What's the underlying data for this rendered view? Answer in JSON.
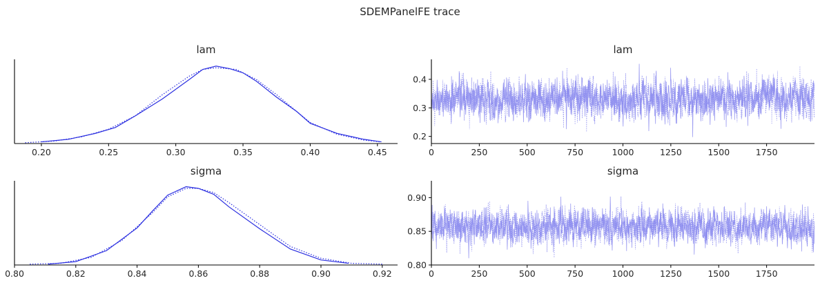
{
  "figure": {
    "suptitle": "SDEMPanelFE trace",
    "line_color": "#2a2ee0",
    "trace_color": "#8a8aee"
  },
  "chart_data": [
    {
      "id": "lam-kde",
      "type": "line",
      "title": "lam",
      "xlabel": "",
      "ylabel": "",
      "xlim": [
        0.18,
        0.465
      ],
      "ylim": [
        0,
        1.0
      ],
      "x_ticks": [
        0.2,
        0.25,
        0.3,
        0.35,
        0.4,
        0.45
      ],
      "x_tick_labels": [
        "0.20",
        "0.25",
        "0.30",
        "0.35",
        "0.40",
        "0.45"
      ],
      "y_ticks": [],
      "series": [
        {
          "style": "solid",
          "x": [
            0.2,
            0.22,
            0.24,
            0.255,
            0.27,
            0.29,
            0.31,
            0.32,
            0.33,
            0.34,
            0.35,
            0.36,
            0.375,
            0.39,
            0.4,
            0.42,
            0.44,
            0.453
          ],
          "y": [
            0.02,
            0.05,
            0.12,
            0.19,
            0.33,
            0.53,
            0.76,
            0.88,
            0.92,
            0.89,
            0.84,
            0.74,
            0.55,
            0.38,
            0.24,
            0.12,
            0.05,
            0.02
          ]
        },
        {
          "style": "dotted",
          "x": [
            0.188,
            0.21,
            0.23,
            0.25,
            0.27,
            0.29,
            0.31,
            0.32,
            0.33,
            0.345,
            0.36,
            0.375,
            0.39,
            0.4,
            0.42,
            0.44,
            0.452
          ],
          "y": [
            0.01,
            0.03,
            0.08,
            0.17,
            0.33,
            0.58,
            0.8,
            0.88,
            0.9,
            0.88,
            0.76,
            0.58,
            0.38,
            0.25,
            0.11,
            0.04,
            0.02
          ]
        }
      ]
    },
    {
      "id": "lam-trace",
      "type": "line",
      "title": "lam",
      "xlabel": "",
      "ylabel": "",
      "xlim": [
        0,
        2000
      ],
      "ylim": [
        0.175,
        0.47
      ],
      "x_ticks": [
        0,
        250,
        500,
        750,
        1000,
        1250,
        1500,
        1750
      ],
      "x_tick_labels": [
        "0",
        "250",
        "500",
        "750",
        "1000",
        "1250",
        "1500",
        "1750"
      ],
      "y_ticks": [
        0.2,
        0.3,
        0.4
      ],
      "y_tick_labels": [
        "0.2",
        "0.3",
        "0.4"
      ],
      "trace": {
        "n_draws": 2000,
        "center": 0.33,
        "spread": 0.045,
        "min": 0.19,
        "max": 0.455
      }
    },
    {
      "id": "sigma-kde",
      "type": "line",
      "title": "sigma",
      "xlabel": "",
      "ylabel": "",
      "xlim": [
        0.8,
        0.925
      ],
      "ylim": [
        0,
        1.0
      ],
      "x_ticks": [
        0.8,
        0.82,
        0.84,
        0.86,
        0.88,
        0.9,
        0.92
      ],
      "x_tick_labels": [
        "0.80",
        "0.82",
        "0.84",
        "0.86",
        "0.88",
        "0.90",
        "0.92"
      ],
      "y_ticks": [],
      "series": [
        {
          "style": "solid",
          "x": [
            0.811,
            0.82,
            0.83,
            0.84,
            0.845,
            0.85,
            0.856,
            0.86,
            0.865,
            0.87,
            0.88,
            0.89,
            0.9,
            0.909
          ],
          "y": [
            0.01,
            0.04,
            0.17,
            0.44,
            0.64,
            0.83,
            0.93,
            0.91,
            0.84,
            0.69,
            0.43,
            0.19,
            0.06,
            0.02
          ]
        },
        {
          "style": "dotted",
          "x": [
            0.805,
            0.815,
            0.825,
            0.835,
            0.845,
            0.85,
            0.856,
            0.86,
            0.865,
            0.87,
            0.88,
            0.89,
            0.9,
            0.91,
            0.92
          ],
          "y": [
            0.01,
            0.02,
            0.09,
            0.29,
            0.62,
            0.81,
            0.91,
            0.91,
            0.86,
            0.74,
            0.48,
            0.22,
            0.08,
            0.02,
            0.01
          ]
        }
      ]
    },
    {
      "id": "sigma-trace",
      "type": "line",
      "title": "sigma",
      "xlabel": "",
      "ylabel": "",
      "xlim": [
        0,
        2000
      ],
      "ylim": [
        0.8,
        0.925
      ],
      "x_ticks": [
        0,
        250,
        500,
        750,
        1000,
        1250,
        1500,
        1750
      ],
      "x_tick_labels": [
        "0",
        "250",
        "500",
        "750",
        "1000",
        "1250",
        "1500",
        "1750"
      ],
      "y_ticks": [
        0.8,
        0.85,
        0.9
      ],
      "y_tick_labels": [
        "0.80",
        "0.85",
        "0.90"
      ],
      "trace": {
        "n_draws": 2000,
        "center": 0.857,
        "spread": 0.017,
        "min": 0.81,
        "max": 0.918
      }
    }
  ]
}
